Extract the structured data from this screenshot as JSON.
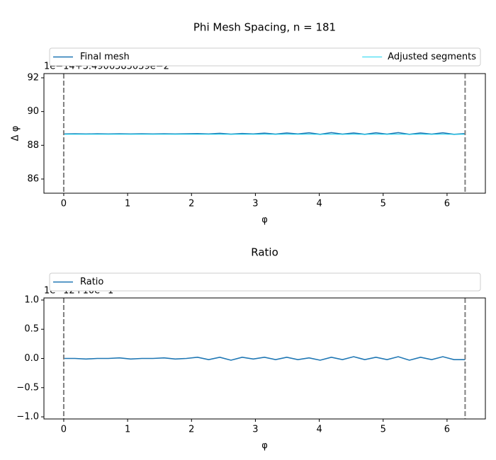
{
  "chart_data": [
    {
      "type": "line",
      "title": "Phi Mesh Spacing, n = 181",
      "xlabel": "φ",
      "ylabel": "Δ φ",
      "offset_text": "1e−14+3.4906585039e−2",
      "x": [
        0,
        0.175,
        0.349,
        0.524,
        0.698,
        0.873,
        1.047,
        1.222,
        1.396,
        1.571,
        1.745,
        1.92,
        2.094,
        2.269,
        2.443,
        2.618,
        2.793,
        2.967,
        3.142,
        3.316,
        3.491,
        3.665,
        3.84,
        4.014,
        4.189,
        4.363,
        4.538,
        4.712,
        4.887,
        5.061,
        5.236,
        5.411,
        5.585,
        5.76,
        5.934,
        6.109,
        6.283
      ],
      "series": [
        {
          "name": "Final mesh",
          "color": "#1f77b4",
          "values": [
            88.67,
            88.68,
            88.67,
            88.68,
            88.67,
            88.68,
            88.67,
            88.68,
            88.67,
            88.68,
            88.67,
            88.68,
            88.69,
            88.67,
            88.71,
            88.66,
            88.7,
            88.67,
            88.72,
            88.66,
            88.73,
            88.67,
            88.74,
            88.65,
            88.75,
            88.66,
            88.73,
            88.65,
            88.74,
            88.66,
            88.75,
            88.65,
            88.73,
            88.66,
            88.74,
            88.65,
            88.69
          ]
        },
        {
          "name": "Adjusted segments",
          "color": "#1fd6f0",
          "values": [
            88.65,
            88.65,
            88.65,
            88.65,
            88.65,
            88.65,
            88.65,
            88.65,
            88.65,
            88.65,
            88.65,
            88.65,
            88.65,
            88.65,
            88.65,
            88.65,
            88.65,
            88.65,
            88.65,
            88.65,
            88.65,
            88.65,
            88.65,
            88.65,
            88.65,
            88.65,
            88.65,
            88.65,
            88.65,
            88.65,
            88.65,
            88.65,
            88.65,
            88.65,
            88.65,
            88.65,
            88.65
          ]
        }
      ],
      "vlines": [
        0,
        6.283
      ],
      "xlim": [
        -0.31,
        6.6
      ],
      "ylim": [
        85.16,
        92.25
      ],
      "xticks": [
        0,
        1,
        2,
        3,
        4,
        5,
        6
      ],
      "yticks": [
        86,
        88,
        90,
        92
      ]
    },
    {
      "type": "line",
      "title": "Ratio",
      "xlabel": "φ",
      "offset_text": "1e−12+10e−1",
      "x": [
        0,
        0.175,
        0.349,
        0.524,
        0.698,
        0.873,
        1.047,
        1.222,
        1.396,
        1.571,
        1.745,
        1.92,
        2.094,
        2.269,
        2.443,
        2.618,
        2.793,
        2.967,
        3.142,
        3.316,
        3.491,
        3.665,
        3.84,
        4.014,
        4.189,
        4.363,
        4.538,
        4.712,
        4.887,
        5.061,
        5.236,
        5.411,
        5.585,
        5.76,
        5.934,
        6.109,
        6.283
      ],
      "series": [
        {
          "name": "Ratio",
          "color": "#1f77b4",
          "values": [
            0.0,
            0.0,
            -0.01,
            0.0,
            0.0,
            0.01,
            -0.01,
            0.0,
            0.0,
            0.01,
            -0.01,
            0.0,
            0.02,
            -0.02,
            0.02,
            -0.03,
            0.02,
            -0.01,
            0.02,
            -0.02,
            0.02,
            -0.02,
            0.01,
            -0.03,
            0.02,
            -0.02,
            0.03,
            -0.02,
            0.02,
            -0.02,
            0.03,
            -0.03,
            0.02,
            -0.02,
            0.03,
            -0.02,
            -0.02
          ]
        }
      ],
      "vlines": [
        0,
        6.283
      ],
      "xlim": [
        -0.31,
        6.6
      ],
      "ylim": [
        -1.036,
        1.036
      ],
      "xticks": [
        0,
        1,
        2,
        3,
        4,
        5,
        6
      ],
      "yticks": [
        {
          "value": -1,
          "label": "−1.0"
        },
        {
          "value": -0.5,
          "label": "−0.5"
        },
        {
          "value": 0,
          "label": "0.0"
        },
        {
          "value": 0.5,
          "label": "0.5"
        },
        {
          "value": 1,
          "label": "1.0"
        }
      ]
    }
  ]
}
